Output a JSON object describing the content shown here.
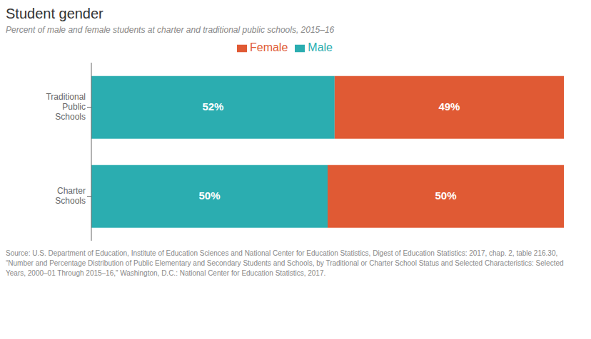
{
  "chart_data": {
    "type": "bar",
    "title": "Student gender",
    "subtitle": "Percent of male and female students at charter and traditional public schools, 2015–16",
    "orientation": "horizontal",
    "stacked": true,
    "data_labels": true,
    "tick_labels": "y",
    "grid": false,
    "legend": "top",
    "categories": [
      "Traditional\nPublic\nSchools",
      "Charter\nSchools"
    ],
    "series": [
      {
        "name": "Male",
        "color": "#2badb0",
        "values": [
          52,
          50
        ],
        "value_labels": [
          "52%",
          "50%"
        ]
      },
      {
        "name": "Female",
        "color": "#e05a34",
        "values": [
          49,
          50
        ],
        "value_labels": [
          "49%",
          "50%"
        ]
      }
    ],
    "source": "Source: U.S. Department of Education, Institute of Education Sciences and National Center for Education Statistics, Digest of Education Statistics: 2017, chap. 2, table 216.30, “Number and Percentage Distribution of Public Elementary and Secondary Students and Schools, by Traditional or Charter School Status and Selected Characteristics: Selected Years, 2000–01 Through 2015–16,” Washington, D.C.: National Center for Education Statistics, 2017."
  }
}
